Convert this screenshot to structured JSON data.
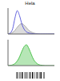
{
  "chart_data": [
    {
      "type": "line",
      "title": "Hela",
      "x": [
        0,
        5,
        10,
        15,
        20,
        25,
        30,
        35,
        40,
        45,
        50,
        55,
        60,
        65,
        70,
        75,
        80,
        85,
        90,
        95,
        100
      ],
      "xlim": [
        0,
        100
      ],
      "ylim": [
        0,
        100
      ],
      "tick_labels": false,
      "series": [
        {
          "type": "area",
          "color": "#9a9a9a",
          "values": [
            0,
            2,
            6,
            14,
            26,
            36,
            40,
            34,
            24,
            14,
            8,
            4,
            2,
            1,
            0,
            0,
            0,
            0,
            0,
            0,
            0
          ]
        },
        {
          "type": "line",
          "color": "#3b3bd6",
          "values": [
            0,
            4,
            20,
            62,
            90,
            70,
            38,
            18,
            8,
            4,
            2,
            1,
            0,
            0,
            0,
            0,
            0,
            0,
            0,
            0,
            0
          ]
        }
      ]
    },
    {
      "type": "area",
      "x": [
        0,
        5,
        10,
        15,
        20,
        25,
        30,
        35,
        40,
        45,
        50,
        55,
        60,
        65,
        70,
        75,
        80,
        85,
        90,
        95,
        100
      ],
      "xlim": [
        0,
        100
      ],
      "ylim": [
        0,
        100
      ],
      "tick_labels": false,
      "series": [
        {
          "type": "area",
          "color": "#2fb82f",
          "values": [
            0,
            1,
            3,
            8,
            18,
            34,
            56,
            74,
            80,
            66,
            44,
            24,
            12,
            5,
            2,
            1,
            0,
            0,
            0,
            0,
            0
          ]
        }
      ]
    }
  ]
}
